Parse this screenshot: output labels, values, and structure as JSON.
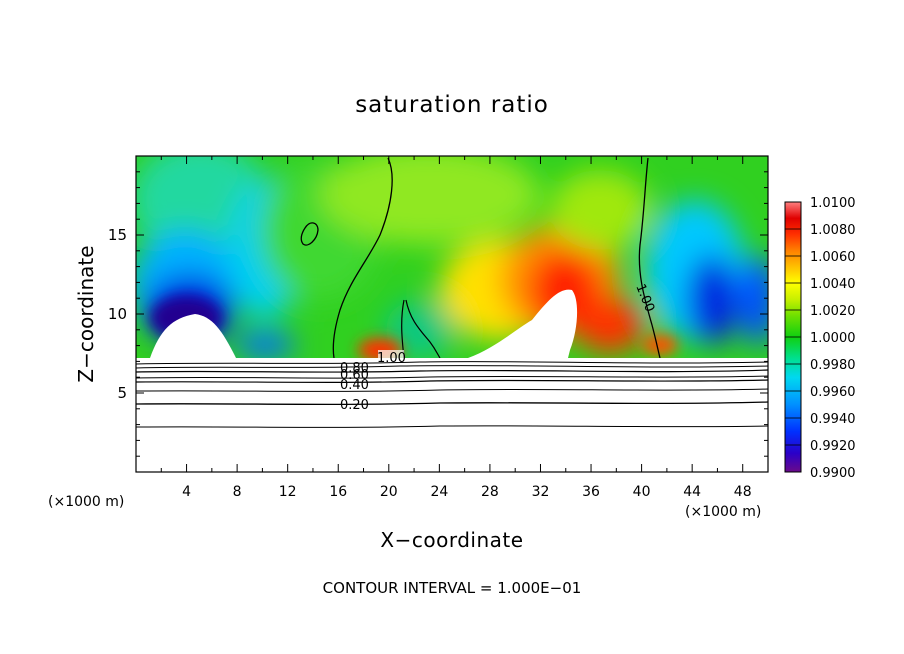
{
  "chart_data": {
    "type": "heatmap",
    "title": "saturation ratio",
    "xlabel": "X−coordinate",
    "ylabel": "Z−coordinate",
    "x_unit": "(×1000 m)",
    "y_unit": "(×1000 m)",
    "xlim": [
      0,
      50
    ],
    "ylim": [
      0,
      20
    ],
    "xticks": [
      4,
      8,
      12,
      16,
      20,
      24,
      28,
      32,
      36,
      40,
      44,
      48
    ],
    "yticks": [
      5,
      10,
      15
    ],
    "colorbar": {
      "min": 0.99,
      "max": 1.01,
      "ticks": [
        "1.0100",
        "1.0080",
        "1.0060",
        "1.0040",
        "1.0020",
        "1.0000",
        "0.9980",
        "0.9960",
        "0.9940",
        "0.9920",
        "0.9900"
      ],
      "colors": [
        "#6a0a8a",
        "#2a00c8",
        "#0030ff",
        "#0090ff",
        "#00d8f0",
        "#00e090",
        "#10d010",
        "#70e000",
        "#c8f000",
        "#ffff00",
        "#ffc000",
        "#ff8000",
        "#ff3000",
        "#e00000",
        "#ff8080"
      ]
    },
    "contour_labels": [
      "1.00",
      "0.80",
      "0.60",
      "0.40",
      "0.20",
      "1.00"
    ],
    "footer": "CONTOUR INTERVAL = 1.000E−01"
  }
}
